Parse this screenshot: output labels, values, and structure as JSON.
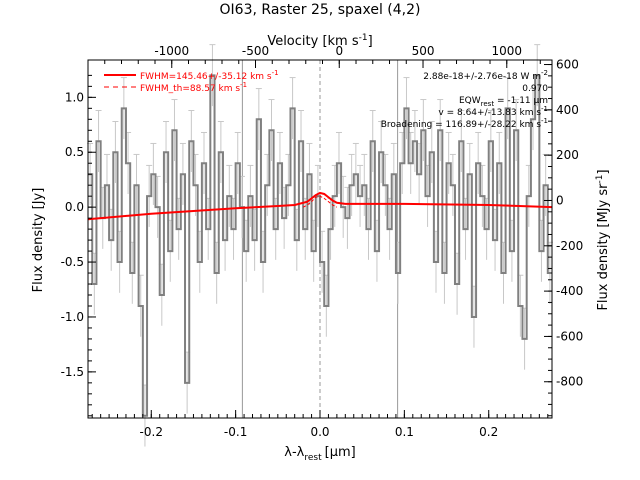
{
  "chart_data": {
    "type": "line",
    "title": "OI63, Raster 25, spaxel (4,2)",
    "xlabel": "λ-λ",
    "xlabel_sub": "rest",
    "xlabel_unit": "[μm]",
    "ylabel": "Flux density [Jy]",
    "top_xlabel": "Velocity [km s",
    "top_xlabel_sup": "-1",
    "top_xlabel_end": "]",
    "right_ylabel": "Flux density [MJy sr",
    "right_ylabel_sup": "-1",
    "right_ylabel_end": "]",
    "xlim": [
      -0.275,
      0.275
    ],
    "ylim": [
      -1.92,
      1.34
    ],
    "right_ylim": [
      -960,
      620
    ],
    "top_xlim": [
      -1500,
      1270
    ],
    "x_ticks": [
      "-0.2",
      "-0.1",
      "0.0",
      "0.1",
      "0.2"
    ],
    "x_tick_values": [
      -0.2,
      -0.1,
      0.0,
      0.1,
      0.2
    ],
    "y_ticks": [
      "-1.5",
      "-1.0",
      "-0.5",
      "0.0",
      "0.5",
      "1.0"
    ],
    "y_tick_values": [
      -1.5,
      -1.0,
      -0.5,
      0.0,
      0.5,
      1.0
    ],
    "top_ticks": [
      "-1000",
      "-500",
      "0",
      "500",
      "1000"
    ],
    "top_tick_values": [
      -1000,
      -500,
      0,
      500,
      1000
    ],
    "right_ticks": [
      "-800",
      "-600",
      "-400",
      "-200",
      "0",
      "200",
      "400",
      "600"
    ],
    "right_tick_values": [
      -800,
      -600,
      -400,
      -200,
      0,
      200,
      400,
      600
    ],
    "vertical_lines": [
      -0.092,
      0.0,
      0.092
    ],
    "legend": {
      "position": "top-left",
      "entries": [
        {
          "label": "FWHM=145.46+/-35.12 km s",
          "sup": "-1",
          "style": "solid"
        },
        {
          "label": "FWHM_th=88.57 km s",
          "sup": "-1",
          "style": "dashed"
        }
      ]
    },
    "annotations": [
      "2.88e-18+/-2.76e-18 W m",
      "-2",
      "0.970",
      "EQW",
      "rest",
      " = -1.11 μm",
      "v = 8.64+/-13.83 km s",
      "-1",
      "Broadening = 116.89+/-28.22 km s",
      "-1"
    ],
    "series": [
      {
        "name": "spectrum",
        "color": "#808080",
        "x": [
          -0.275,
          -0.27,
          -0.265,
          -0.26,
          -0.255,
          -0.25,
          -0.245,
          -0.24,
          -0.235,
          -0.23,
          -0.225,
          -0.22,
          -0.215,
          -0.21,
          -0.205,
          -0.2,
          -0.195,
          -0.19,
          -0.185,
          -0.18,
          -0.175,
          -0.17,
          -0.165,
          -0.16,
          -0.155,
          -0.15,
          -0.145,
          -0.14,
          -0.135,
          -0.13,
          -0.125,
          -0.12,
          -0.115,
          -0.11,
          -0.105,
          -0.1,
          -0.095,
          -0.09,
          -0.085,
          -0.08,
          -0.075,
          -0.07,
          -0.065,
          -0.06,
          -0.055,
          -0.05,
          -0.045,
          -0.04,
          -0.035,
          -0.03,
          -0.025,
          -0.02,
          -0.015,
          -0.01,
          -0.005,
          0.0,
          0.005,
          0.01,
          0.015,
          0.02,
          0.025,
          0.03,
          0.035,
          0.04,
          0.045,
          0.05,
          0.055,
          0.06,
          0.065,
          0.07,
          0.075,
          0.08,
          0.085,
          0.09,
          0.095,
          0.1,
          0.105,
          0.11,
          0.115,
          0.12,
          0.125,
          0.13,
          0.135,
          0.14,
          0.145,
          0.15,
          0.155,
          0.16,
          0.165,
          0.17,
          0.175,
          0.18,
          0.185,
          0.19,
          0.195,
          0.2,
          0.205,
          0.21,
          0.215,
          0.22,
          0.225,
          0.23,
          0.235,
          0.24,
          0.245,
          0.25,
          0.255,
          0.26,
          0.265,
          0.27
        ],
        "y": [
          0.3,
          -0.7,
          0.6,
          -0.1,
          0.2,
          -0.3,
          0.5,
          -0.5,
          0.9,
          0.4,
          -0.6,
          0.2,
          -0.9,
          -1.9,
          0.1,
          0.3,
          0.0,
          -0.8,
          0.5,
          -0.4,
          0.7,
          -0.2,
          0.3,
          -1.6,
          0.6,
          0.2,
          -0.5,
          0.4,
          -0.2,
          1.2,
          -0.6,
          0.5,
          -0.3,
          0.1,
          -0.2,
          0.4,
          0.0,
          -0.4,
          0.1,
          -0.3,
          0.8,
          -0.5,
          0.2,
          0.7,
          -0.2,
          0.4,
          -0.1,
          0.2,
          0.9,
          -0.3,
          0.6,
          -0.2,
          0.3,
          -0.4,
          0.1,
          -0.5,
          -0.9,
          -0.2,
          0.1,
          0.4,
          0.0,
          -0.1,
          0.2,
          0.3,
          0.1,
          0.2,
          -0.2,
          0.6,
          -0.4,
          0.5,
          0.2,
          -0.2,
          0.3,
          -0.6,
          0.4,
          0.9,
          0.4,
          0.6,
          0.3,
          0.7,
          0.1,
          0.5,
          -0.5,
          0.7,
          -0.6,
          0.4,
          0.2,
          -0.7,
          0.6,
          -0.2,
          0.3,
          -1.0,
          0.4,
          0.1,
          -0.2,
          0.6,
          -0.3,
          0.4,
          -0.6,
          0.9,
          -0.4,
          0.7,
          -0.9,
          -1.2,
          0.1,
          0.8,
          1.2,
          -0.4,
          0.2,
          -0.6
        ]
      },
      {
        "name": "fit",
        "color": "#ff0000",
        "x": [
          -0.275,
          -0.2,
          -0.1,
          -0.05,
          -0.03,
          -0.015,
          -0.01,
          -0.005,
          0.0,
          0.005,
          0.01,
          0.015,
          0.02,
          0.03,
          0.05,
          0.1,
          0.2,
          0.275
        ],
        "y": [
          -0.11,
          -0.06,
          -0.01,
          0.01,
          0.02,
          0.05,
          0.08,
          0.11,
          0.13,
          0.12,
          0.09,
          0.06,
          0.04,
          0.03,
          0.03,
          0.03,
          0.02,
          0.0
        ]
      },
      {
        "name": "components",
        "color": "#ff0000",
        "x": [
          -0.02,
          -0.015,
          -0.01,
          -0.005,
          0.0,
          0.005,
          0.01,
          0.015,
          0.02
        ],
        "y": [
          0.0,
          0.02,
          0.05,
          0.09,
          0.1,
          0.08,
          0.05,
          0.02,
          0.0
        ]
      }
    ]
  }
}
